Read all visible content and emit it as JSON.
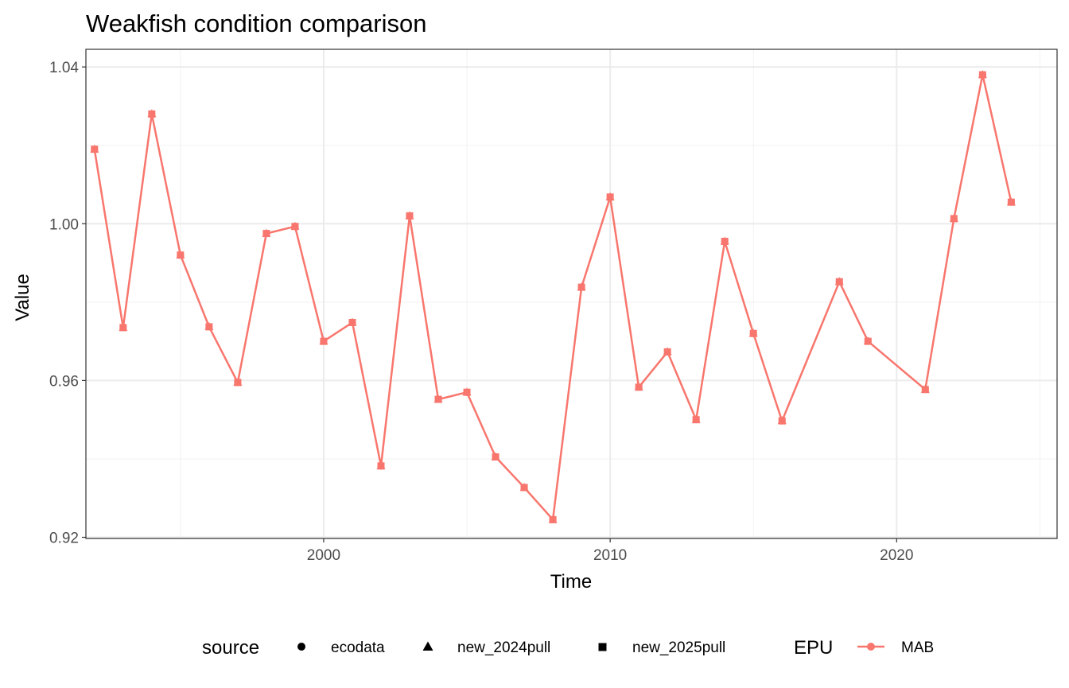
{
  "chart_data": {
    "type": "line",
    "title": "Weakfish condition comparison",
    "xlabel": "Time",
    "ylabel": "Value",
    "xlim": [
      1991.7,
      2025.6
    ],
    "ylim": [
      0.9197,
      1.0445
    ],
    "x_ticks": [
      2000,
      2010,
      2020
    ],
    "y_ticks": [
      0.92,
      0.96,
      1.0,
      1.04
    ],
    "x_tick_labels": [
      "2000",
      "2010",
      "2020"
    ],
    "y_tick_labels": [
      "0.92",
      "0.96",
      "1.00",
      "1.04"
    ],
    "grid": true,
    "legend_position": "bottom",
    "x": [
      1992,
      1993,
      1994,
      1995,
      1996,
      1997,
      1998,
      1999,
      2000,
      2001,
      2002,
      2003,
      2004,
      2005,
      2006,
      2007,
      2008,
      2009,
      2010,
      2011,
      2012,
      2013,
      2014,
      2015,
      2016,
      2018,
      2019,
      2021,
      2022,
      2023,
      2024
    ],
    "series": [
      {
        "name": "MAB",
        "color": "#F8766D",
        "values": [
          1.019,
          0.9735,
          1.028,
          0.992,
          0.9737,
          0.9595,
          0.9975,
          0.9993,
          0.97,
          0.9748,
          0.9382,
          1.002,
          0.9552,
          0.957,
          0.9405,
          0.9327,
          0.9245,
          0.9838,
          1.0068,
          0.9583,
          0.9673,
          0.95,
          0.9955,
          0.972,
          0.9497,
          0.9852,
          0.97,
          0.9577,
          1.0013,
          1.038,
          1.0055
        ]
      }
    ]
  },
  "legend": {
    "source_title": "source",
    "source_items": [
      {
        "label": "ecodata",
        "shape": "circle-icon"
      },
      {
        "label": "new_2024pull",
        "shape": "triangle-icon"
      },
      {
        "label": "new_2025pull",
        "shape": "square-icon"
      }
    ],
    "epu_title": "EPU",
    "epu_items": [
      {
        "label": "MAB",
        "color": "#F8766D"
      }
    ]
  }
}
